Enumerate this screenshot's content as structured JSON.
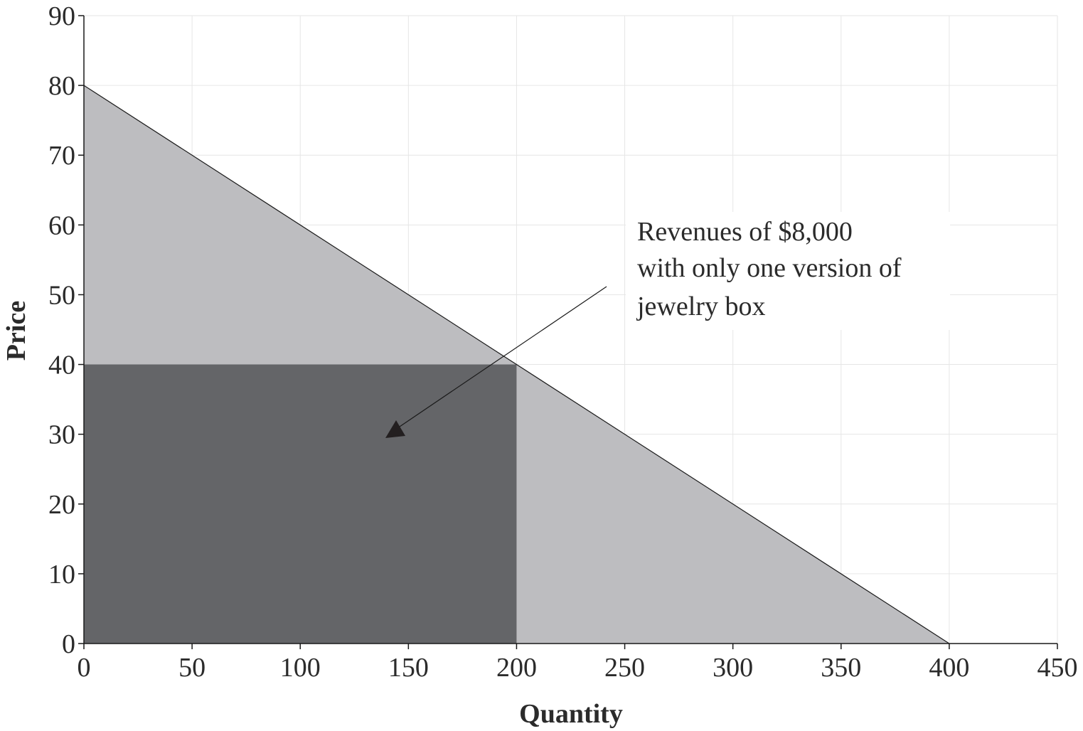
{
  "chart_data": {
    "type": "area",
    "title": "",
    "xlabel": "Quantity",
    "ylabel": "Price",
    "xlim": [
      0,
      450
    ],
    "ylim": [
      0,
      90
    ],
    "x_ticks": [
      0,
      50,
      100,
      150,
      200,
      250,
      300,
      350,
      400,
      450
    ],
    "y_ticks": [
      0,
      10,
      20,
      30,
      40,
      50,
      60,
      70,
      80,
      90
    ],
    "grid": true,
    "demand_line": {
      "x": [
        0,
        400
      ],
      "y": [
        80,
        0
      ]
    },
    "revenue_rectangle": {
      "x": [
        0,
        200
      ],
      "y": [
        0,
        40
      ]
    },
    "annotation": {
      "lines": [
        "Revenues of $8,000",
        "with only one version of",
        "jewelry box"
      ],
      "points_to": {
        "x": 143,
        "y": 30
      }
    },
    "colors": {
      "demand_area": "#bdbdc0",
      "revenue_area": "#646568",
      "line": "#1a1a1a",
      "grid": "#e6e6e6"
    }
  }
}
